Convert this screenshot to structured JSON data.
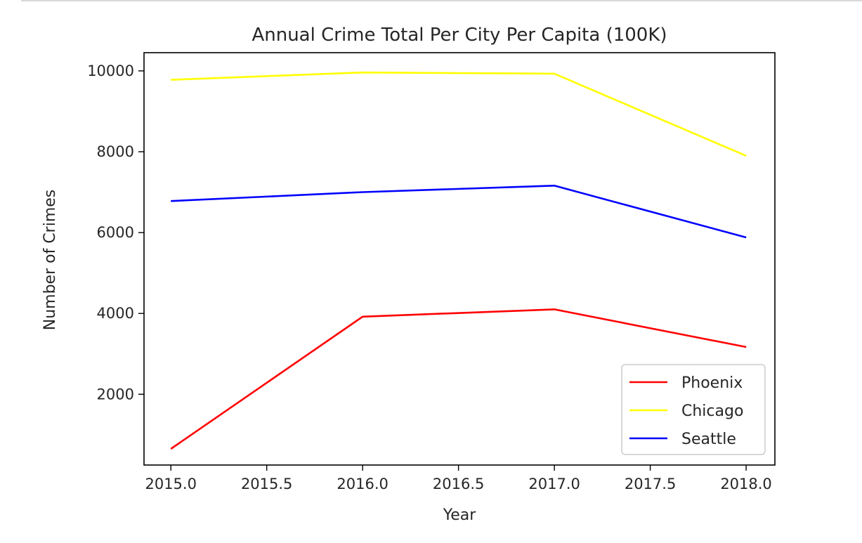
{
  "chart_data": {
    "type": "line",
    "title": "Annual Crime Total Per City Per Capita (100K)",
    "xlabel": "Year",
    "ylabel": "Number of Crimes",
    "x": [
      2015.0,
      2016.0,
      2017.0,
      2018.0
    ],
    "x_ticks": [
      2015.0,
      2015.5,
      2016.0,
      2016.5,
      2017.0,
      2017.5,
      2018.0
    ],
    "x_tick_labels": [
      "2015.0",
      "2015.5",
      "2016.0",
      "2016.5",
      "2017.0",
      "2017.5",
      "2018.0"
    ],
    "y_ticks": [
      2000,
      4000,
      6000,
      8000,
      10000
    ],
    "y_tick_labels": [
      "2000",
      "4000",
      "6000",
      "8000",
      "10000"
    ],
    "xlim": [
      2014.86,
      2018.15
    ],
    "ylim": [
      250,
      10450
    ],
    "grid": false,
    "legend_position": "lower-right",
    "series": [
      {
        "name": "Phoenix",
        "color": "#ff0000",
        "values": [
          650,
          3920,
          4100,
          3170
        ]
      },
      {
        "name": "Chicago",
        "color": "#ffff00",
        "values": [
          9780,
          9960,
          9930,
          7900
        ]
      },
      {
        "name": "Seattle",
        "color": "#0000ff",
        "values": [
          6780,
          7000,
          7160,
          5880
        ]
      }
    ]
  }
}
